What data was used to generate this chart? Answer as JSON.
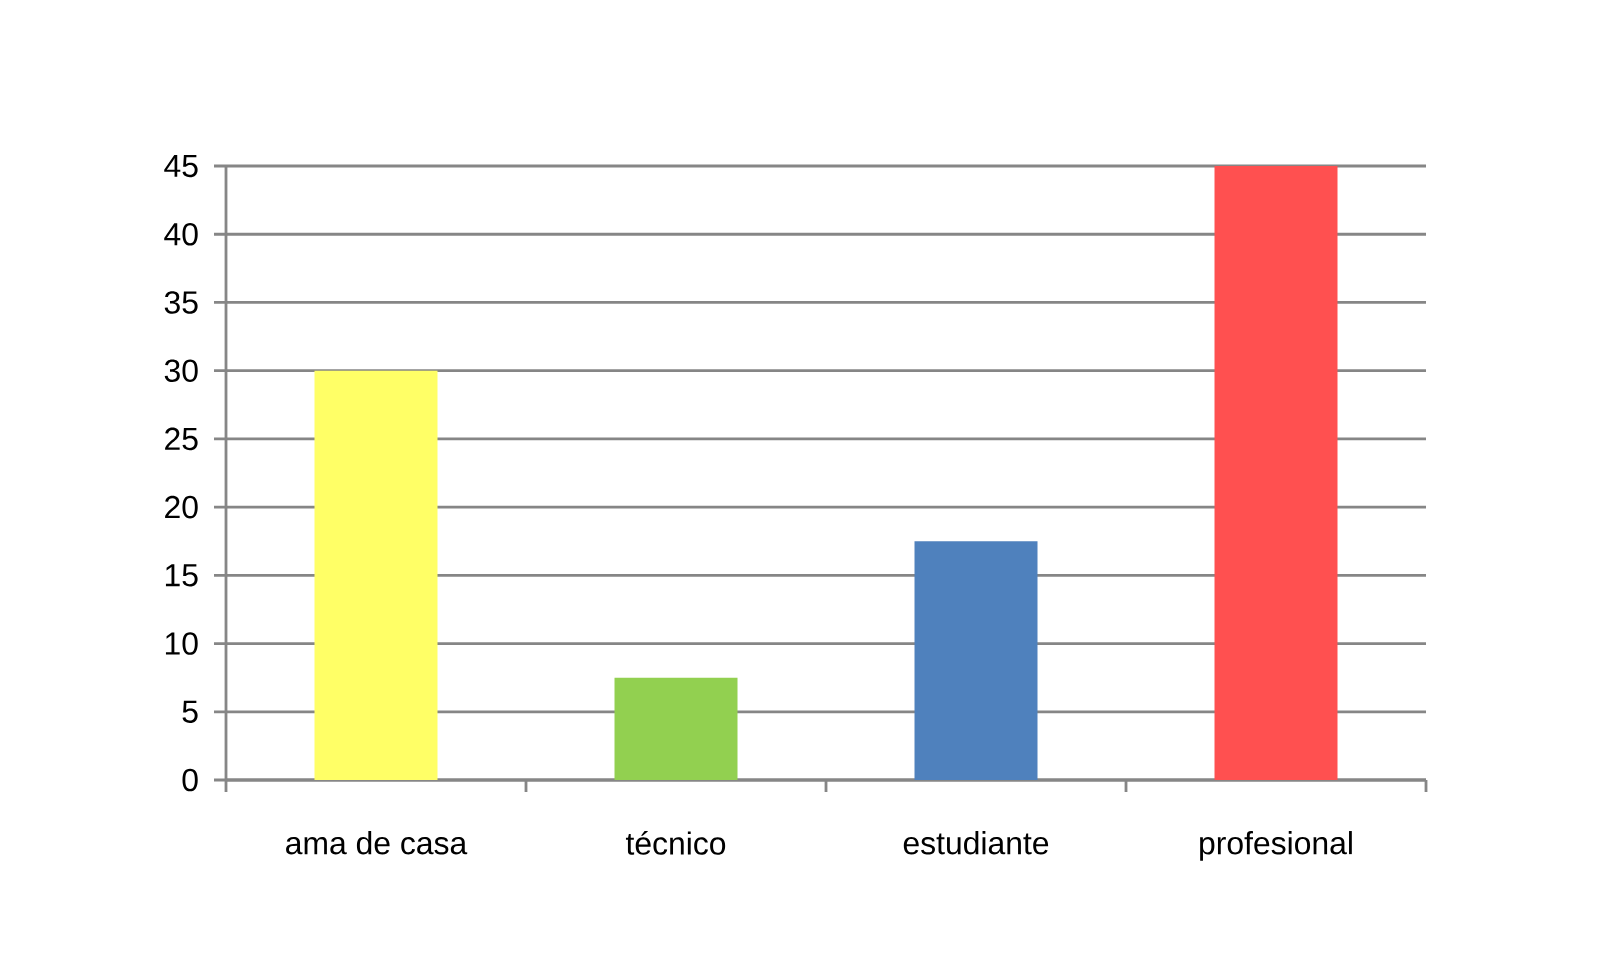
{
  "chart_data": {
    "type": "bar",
    "categories": [
      "ama de casa",
      "técnico",
      "estudiante",
      "profesional"
    ],
    "values": [
      30,
      7.5,
      17.5,
      45
    ],
    "colors": [
      "#ffff66",
      "#92d050",
      "#4f81bd",
      "#ff5050"
    ],
    "ylim": [
      0,
      45
    ],
    "yticks": [
      0,
      5,
      10,
      15,
      20,
      25,
      30,
      35,
      40,
      45
    ],
    "grid": "y"
  }
}
